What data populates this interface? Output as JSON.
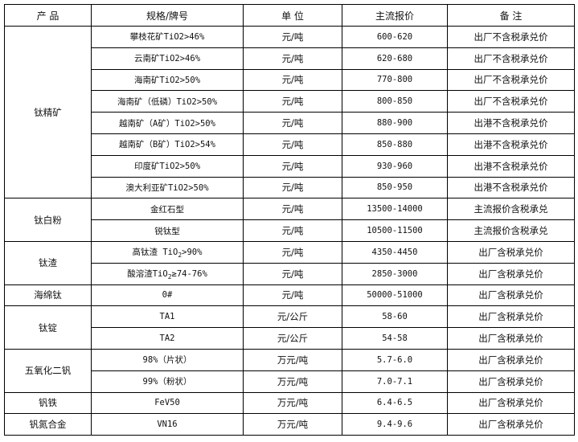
{
  "headers": [
    "产  品",
    "规格/牌号",
    "单 位",
    "主流报价",
    "备  注"
  ],
  "groups": [
    {
      "product": "钛精矿",
      "rows": [
        {
          "spec": [
            "攀枝花矿TiO2>46%"
          ],
          "unit": "元/吨",
          "price": "600-620",
          "note": "出厂不含税承兑价"
        },
        {
          "spec": [
            "云南矿TiO2>46%"
          ],
          "unit": "元/吨",
          "price": "620-680",
          "note": "出厂不含税承兑价"
        },
        {
          "spec": [
            "海南矿TiO2>50%"
          ],
          "unit": "元/吨",
          "price": "770-800",
          "note": "出厂不含税承兑价"
        },
        {
          "spec": [
            "海南矿（低磷）TiO2>50%"
          ],
          "unit": "元/吨",
          "price": "800-850",
          "note": "出厂不含税承兑价"
        },
        {
          "spec": [
            "越南矿（A矿）TiO2>50%"
          ],
          "unit": "元/吨",
          "price": "880-900",
          "note": "出港不含税承兑价"
        },
        {
          "spec": [
            "越南矿（B矿）TiO2>54%"
          ],
          "unit": "元/吨",
          "price": "850-880",
          "note": "出港不含税承兑价"
        },
        {
          "spec": [
            "印度矿TiO2>50%"
          ],
          "unit": "元/吨",
          "price": "930-960",
          "note": "出港不含税承兑价"
        },
        {
          "spec": [
            "澳大利亚矿TiO2>50%"
          ],
          "unit": "元/吨",
          "price": "850-950",
          "note": "出港不含税承兑价"
        }
      ]
    },
    {
      "product": "钛白粉",
      "rows": [
        {
          "spec": [
            "金红石型"
          ],
          "unit": "元/吨",
          "price": "13500-14000",
          "note": "主流报价含税承兑"
        },
        {
          "spec": [
            "锐钛型"
          ],
          "unit": "元/吨",
          "price": "10500-11500",
          "note": "主流报价含税承兑"
        }
      ]
    },
    {
      "product": "钛渣",
      "rows": [
        {
          "spec": [
            "高钛渣 TiO",
            "2",
            ">90%"
          ],
          "unit": "元/吨",
          "price": "4350-4450",
          "note": "出厂含税承兑价"
        },
        {
          "spec": [
            "酸溶渣TiO",
            "2",
            "≥74-76%"
          ],
          "unit": "元/吨",
          "price": "2850-3000",
          "note": "出厂含税承兑价"
        }
      ]
    },
    {
      "product": "海绵钛",
      "rows": [
        {
          "spec": [
            "0#"
          ],
          "unit": "元/吨",
          "price": "50000-51000",
          "note": "出厂含税承兑价"
        }
      ]
    },
    {
      "product": "钛锭",
      "rows": [
        {
          "spec": [
            "TA1"
          ],
          "unit": "元/公斤",
          "price": "58-60",
          "note": "出厂含税承兑价"
        },
        {
          "spec": [
            "TA2"
          ],
          "unit": "元/公斤",
          "price": "54-58",
          "note": "出厂含税承兑价"
        }
      ]
    },
    {
      "product": "五氧化二钒",
      "rows": [
        {
          "spec": [
            "98%（片状）"
          ],
          "unit": "万元/吨",
          "price": "5.7-6.0",
          "note": "出厂含税承兑价"
        },
        {
          "spec": [
            "99%（粉状）"
          ],
          "unit": "万元/吨",
          "price": "7.0-7.1",
          "note": "出厂含税承兑价"
        }
      ]
    },
    {
      "product": "钒铁",
      "rows": [
        {
          "spec": [
            "FeV50"
          ],
          "unit": "万元/吨",
          "price": "6.4-6.5",
          "note": "出厂含税承兑价"
        }
      ]
    },
    {
      "product": "钒氮合金",
      "rows": [
        {
          "spec": [
            "VN16"
          ],
          "unit": "万元/吨",
          "price": "9.4-9.6",
          "note": "出厂含税承兑价"
        }
      ]
    }
  ]
}
